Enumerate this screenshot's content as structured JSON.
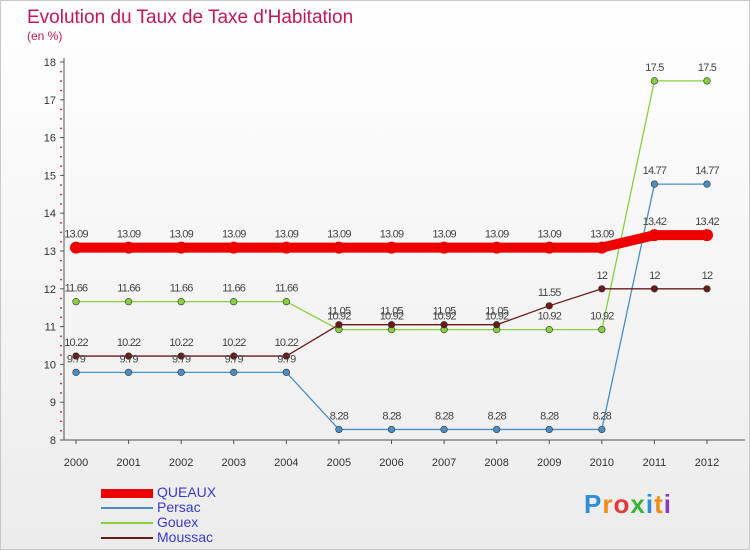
{
  "header": {
    "title": "Evolution du Taux de Taxe d'Habitation",
    "subtitle": "(en %)"
  },
  "chart_data": {
    "type": "line",
    "title": "Evolution du Taux de Taxe d'Habitation",
    "ylabel": "(en %)",
    "xlabel": "",
    "x": [
      "2000",
      "2001",
      "2002",
      "2003",
      "2004",
      "2005",
      "2006",
      "2007",
      "2008",
      "2009",
      "2010",
      "2011",
      "2012"
    ],
    "ylim": [
      8,
      18
    ],
    "yticks": [
      8,
      9,
      10,
      11,
      12,
      13,
      14,
      15,
      16,
      17,
      18
    ],
    "grid": false,
    "legend_position": "bottom-left",
    "series": [
      {
        "name": "QUEAUX",
        "color": "#ee0000",
        "values": [
          13.09,
          13.09,
          13.09,
          13.09,
          13.09,
          13.09,
          13.09,
          13.09,
          13.09,
          13.09,
          13.09,
          13.42,
          13.42
        ],
        "labels": [
          "13.09",
          "13.09",
          "13.09",
          "13.09",
          "13.09",
          "13.09",
          "13.09",
          "13.09",
          "13.09",
          "13.09",
          "13.09",
          "13.42",
          "13.42"
        ]
      },
      {
        "name": "Persac",
        "color": "#4a8ec8",
        "values": [
          9.79,
          9.79,
          9.79,
          9.79,
          9.79,
          8.28,
          8.28,
          8.28,
          8.28,
          8.28,
          8.28,
          14.77,
          14.77
        ],
        "labels": [
          "9.79",
          "9.79",
          "9.79",
          "9.79",
          "9.79",
          "8.28",
          "8.28",
          "8.28",
          "8.28",
          "8.28",
          "8.28",
          "14.77",
          "14.77"
        ]
      },
      {
        "name": "Gouex",
        "color": "#88d040",
        "values": [
          11.66,
          11.66,
          11.66,
          11.66,
          11.66,
          10.92,
          10.92,
          10.92,
          10.92,
          10.92,
          10.92,
          17.5,
          17.5
        ],
        "labels": [
          "11.66",
          "11.66",
          "11.66",
          "11.66",
          "11.66",
          "10.92",
          "10.92",
          "10.92",
          "10.92",
          "10.92",
          "10.92",
          "17.5",
          "17.5"
        ]
      },
      {
        "name": "Moussac",
        "color": "#6b1a1a",
        "values": [
          10.22,
          10.22,
          10.22,
          10.22,
          10.22,
          11.05,
          11.05,
          11.05,
          11.05,
          11.55,
          12,
          12,
          12
        ],
        "labels": [
          "10.22",
          "10.22",
          "10.22",
          "10.22",
          "10.22",
          "11.05",
          "11.05",
          "11.05",
          "11.05",
          "11.55",
          "12",
          "12",
          "12"
        ]
      }
    ]
  },
  "branding": {
    "logo_text": "Proxiti",
    "logo_letters": [
      "P",
      "r",
      "o",
      "x",
      "i",
      "t",
      "i"
    ],
    "logo_colors": [
      "#2e8fd8",
      "#f08c14",
      "#e03c3c",
      "#3cb43c",
      "#2e8fd8",
      "#f08c14",
      "#8c3cb4"
    ]
  }
}
